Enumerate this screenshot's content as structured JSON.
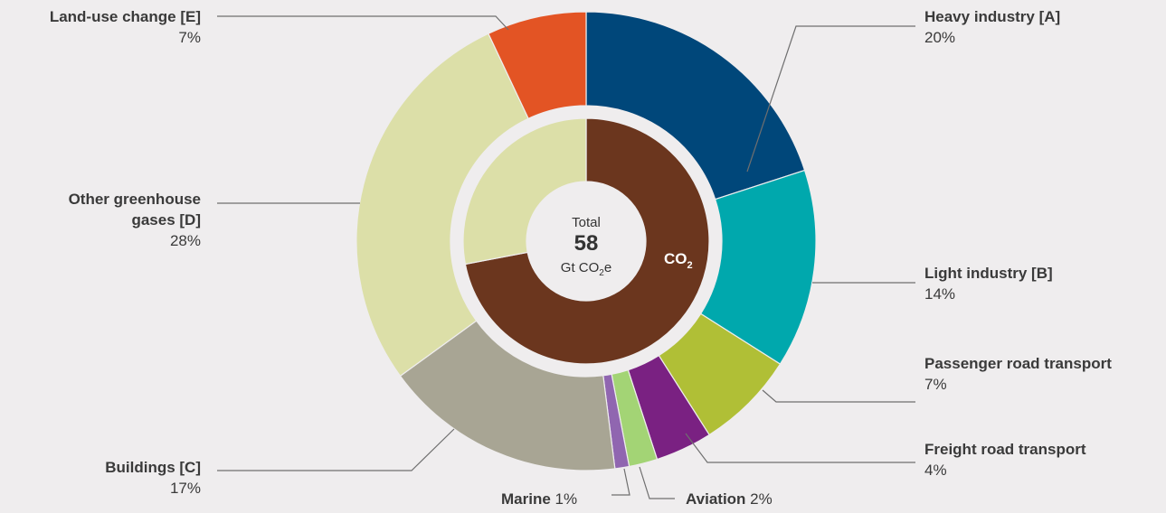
{
  "chart_data": {
    "type": "pie",
    "center": {
      "label": "Total",
      "value": "58",
      "unit_prefix": "Gt CO",
      "unit_sub": "2",
      "unit_suffix": "e"
    },
    "inner_ring": [
      {
        "label": "CO",
        "label_sub": "2",
        "value": 72,
        "color": "#6b361e"
      },
      {
        "label": "",
        "value": 28,
        "color": "#dcdfa8"
      }
    ],
    "outer_ring": [
      {
        "name": "Heavy industry [A]",
        "percent": 20,
        "value_text": "20%",
        "color": "#00477a"
      },
      {
        "name": "Light industry [B]",
        "percent": 14,
        "value_text": "14%",
        "color": "#00a8ad"
      },
      {
        "name": "Passenger road transport",
        "percent": 7,
        "value_text": "7%",
        "color": "#b0bf36"
      },
      {
        "name": "Freight road transport",
        "percent": 4,
        "value_text": "4%",
        "color": "#7a2182"
      },
      {
        "name": "Aviation",
        "percent": 2,
        "value_text": "2%",
        "color": "#a3d475"
      },
      {
        "name": "Marine",
        "percent": 1,
        "value_text": "1%",
        "color": "#9066b0"
      },
      {
        "name": "Buildings [C]",
        "percent": 17,
        "value_text": "17%",
        "color": "#a8a594"
      },
      {
        "name": "Other greenhouse gases [D]",
        "name_lines": [
          "Other greenhouse",
          "gases [D]"
        ],
        "percent": 28,
        "value_text": "28%",
        "color": "#dcdfa8"
      },
      {
        "name": "Land-use change [E]",
        "percent": 7,
        "value_text": "7%",
        "color": "#e35424"
      }
    ]
  }
}
